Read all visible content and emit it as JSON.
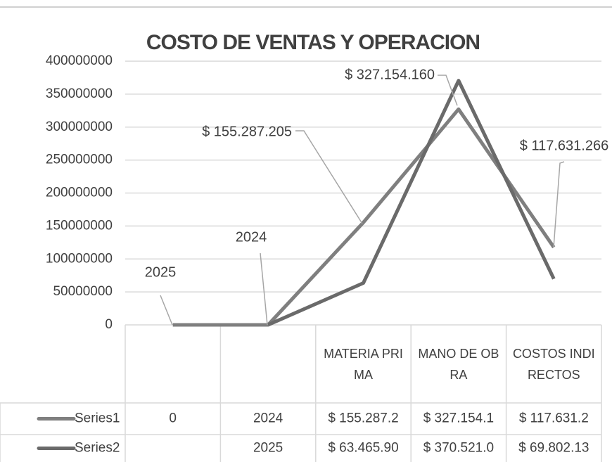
{
  "chart_data": {
    "type": "line",
    "title": "COSTO DE VENTAS Y OPERACION",
    "categories": [
      null,
      null,
      "MATERIA PRIMA",
      "MANO DE OBRA",
      "COSTOS INDIRECTOS"
    ],
    "series": [
      {
        "name": "Series1",
        "color": "#7f7f7f",
        "values": [
          0,
          2024,
          155287205,
          327154160,
          117631266
        ],
        "value_labels": [
          "0",
          "2024",
          "$ 155.287.2",
          "$ 327.154.1",
          "$ 117.631.2"
        ]
      },
      {
        "name": "Series2",
        "color": "#6a6a6a",
        "values": [
          null,
          2025,
          63465900,
          370521000,
          69802130
        ],
        "value_labels": [
          null,
          "2025",
          "$ 63.465.90",
          "$ 370.521.0",
          "$ 69.802.13"
        ]
      }
    ],
    "annotations": [
      "2025",
      "2024",
      "$ 155.287.205",
      "$ 327.154.160",
      "$ 117.631.266"
    ],
    "ylim": [
      0,
      400000000
    ],
    "yticks": [
      0,
      50000000,
      100000000,
      150000000,
      200000000,
      250000000,
      300000000,
      350000000,
      400000000
    ],
    "grid": true,
    "data_table": true
  }
}
